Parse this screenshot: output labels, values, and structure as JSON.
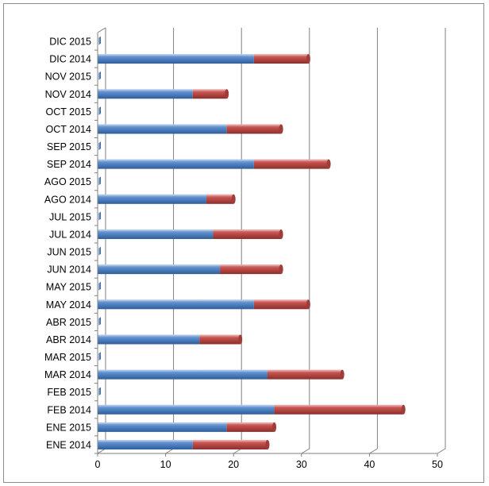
{
  "chart_data": {
    "type": "bar",
    "orientation": "horizontal",
    "stacked": true,
    "style": "3d-cylinder",
    "title": "",
    "xlabel": "",
    "ylabel": "",
    "xlim": [
      0,
      50
    ],
    "xticks": [
      "0",
      "10",
      "20",
      "30",
      "40",
      "50"
    ],
    "grid": true,
    "legend": "none",
    "categories": [
      "ENE 2014",
      "ENE 2015",
      "FEB 2014",
      "FEB 2015",
      "MAR 2014",
      "MAR 2015",
      "ABR 2014",
      "ABR 2015",
      "MAY 2014",
      "MAY 2015",
      "JUN 2014",
      "JUN 2015",
      "JUL 2014",
      "JUL 2015",
      "AGO 2014",
      "AGO 2015",
      "SEP 2014",
      "SEP 2015",
      "OCT 2014",
      "OCT 2015",
      "NOV 2014",
      "NOV 2015",
      "DIC 2014",
      "DIC 2015"
    ],
    "series": [
      {
        "color": "#4f81bd",
        "values": [
          14,
          19,
          26,
          0,
          25,
          0,
          15,
          0,
          23,
          0,
          18,
          0,
          17,
          0,
          16,
          0,
          23,
          0,
          19,
          0,
          14,
          0,
          23,
          0
        ]
      },
      {
        "color": "#c0504d",
        "values": [
          11,
          7,
          19,
          0,
          11,
          0,
          6,
          0,
          8,
          0,
          9,
          0,
          10,
          0,
          4,
          0,
          11,
          0,
          8,
          0,
          5,
          0,
          8,
          0
        ]
      }
    ]
  }
}
